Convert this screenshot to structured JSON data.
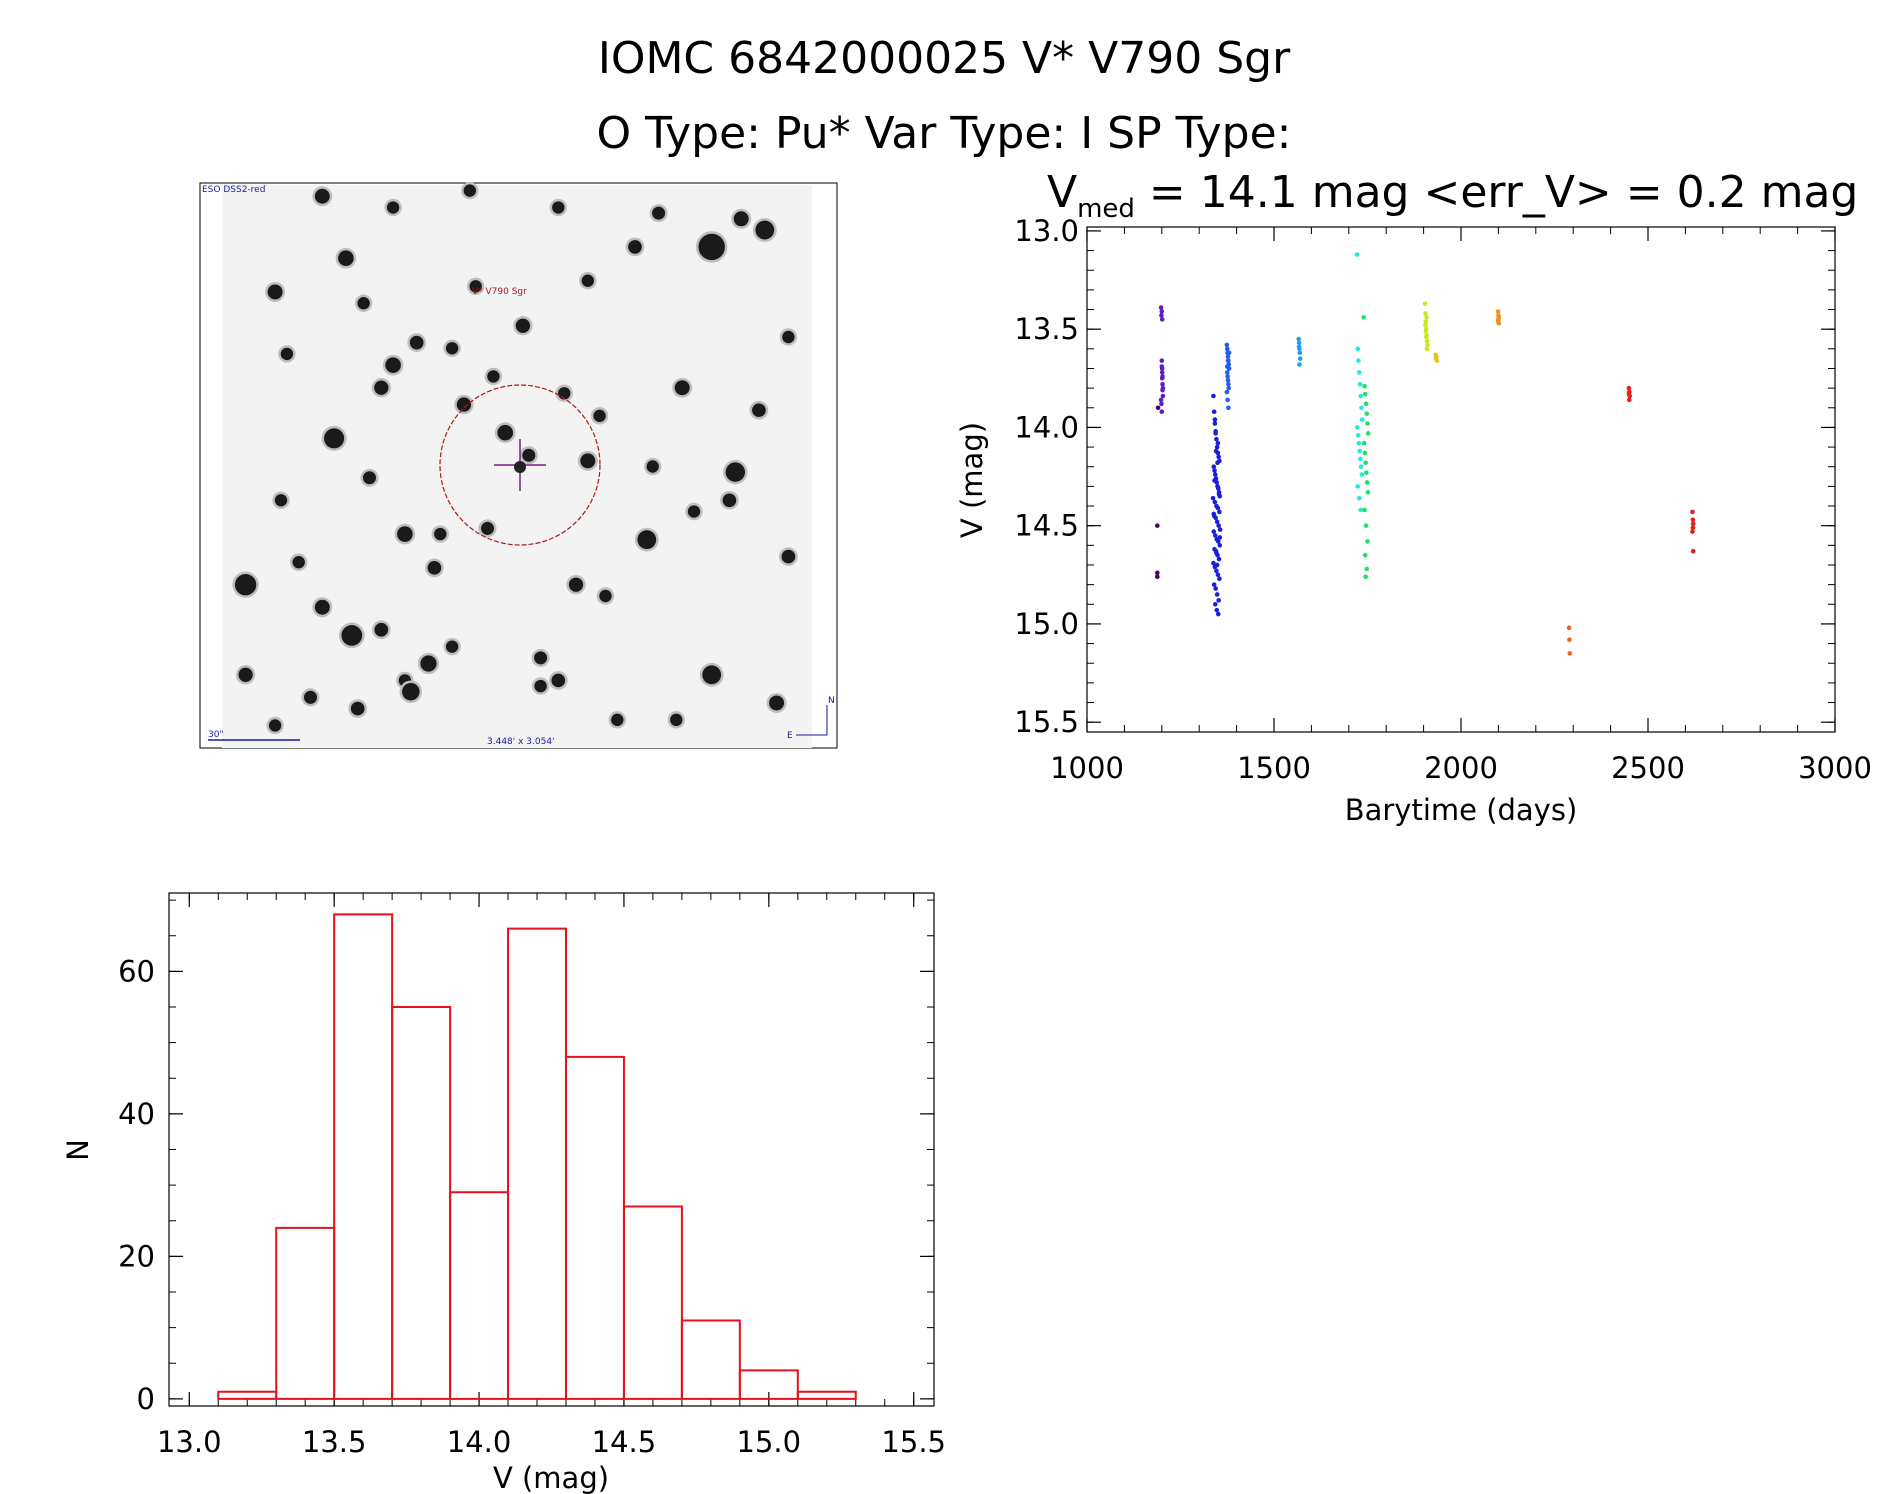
{
  "header": {
    "line1": "IOMC 6842000025    V* V790 Sgr",
    "line2": "O Type: Pu*  Var Type: I  SP Type:"
  },
  "finder": {
    "survey_label": "ESO DSS2-red",
    "object_label": "V* V790 Sgr",
    "scale_label": "30\"",
    "fov_label": "3.448' x 3.054'",
    "north_label": "N",
    "east_label": "E",
    "stars": [
      [
        0.17,
        0.02,
        1.4
      ],
      [
        0.29,
        0.04,
        1.0
      ],
      [
        0.42,
        0.01,
        1.0
      ],
      [
        0.57,
        0.04,
        1.0
      ],
      [
        0.74,
        0.05,
        1.1
      ],
      [
        0.83,
        0.11,
        3.2
      ],
      [
        0.92,
        0.08,
        2.0
      ],
      [
        0.88,
        0.06,
        1.4
      ],
      [
        0.7,
        0.11,
        1.2
      ],
      [
        0.21,
        0.13,
        1.5
      ],
      [
        0.09,
        0.19,
        1.4
      ],
      [
        0.24,
        0.21,
        1.0
      ],
      [
        0.51,
        0.25,
        1.3
      ],
      [
        0.29,
        0.32,
        1.5
      ],
      [
        0.33,
        0.28,
        1.2
      ],
      [
        0.39,
        0.29,
        1.0
      ],
      [
        0.27,
        0.36,
        1.3
      ],
      [
        0.78,
        0.36,
        1.4
      ],
      [
        0.64,
        0.41,
        1.0
      ],
      [
        0.91,
        0.4,
        1.2
      ],
      [
        0.19,
        0.45,
        2.2
      ],
      [
        0.41,
        0.39,
        1.3
      ],
      [
        0.48,
        0.44,
        1.5
      ],
      [
        0.52,
        0.48,
        1.1
      ],
      [
        0.62,
        0.49,
        1.4
      ],
      [
        0.73,
        0.5,
        1.0
      ],
      [
        0.87,
        0.51,
        2.1
      ],
      [
        0.1,
        0.56,
        1.0
      ],
      [
        0.25,
        0.52,
        1.1
      ],
      [
        0.86,
        0.56,
        1.2
      ],
      [
        0.31,
        0.62,
        1.5
      ],
      [
        0.37,
        0.62,
        1.0
      ],
      [
        0.45,
        0.61,
        1.1
      ],
      [
        0.72,
        0.63,
        2.0
      ],
      [
        0.96,
        0.66,
        1.2
      ],
      [
        0.13,
        0.67,
        1.0
      ],
      [
        0.04,
        0.71,
        2.4
      ],
      [
        0.36,
        0.68,
        1.2
      ],
      [
        0.6,
        0.71,
        1.3
      ],
      [
        0.65,
        0.73,
        1.0
      ],
      [
        0.17,
        0.75,
        1.4
      ],
      [
        0.22,
        0.8,
        2.3
      ],
      [
        0.27,
        0.79,
        1.2
      ],
      [
        0.39,
        0.82,
        1.0
      ],
      [
        0.54,
        0.84,
        1.1
      ],
      [
        0.31,
        0.88,
        1.0
      ],
      [
        0.35,
        0.85,
        1.6
      ],
      [
        0.32,
        0.9,
        1.8
      ],
      [
        0.57,
        0.88,
        1.2
      ],
      [
        0.54,
        0.89,
        1.0
      ],
      [
        0.04,
        0.87,
        1.3
      ],
      [
        0.15,
        0.91,
        1.1
      ],
      [
        0.09,
        0.96,
        1.0
      ],
      [
        0.23,
        0.93,
        1.2
      ],
      [
        0.83,
        0.87,
        2.0
      ],
      [
        0.77,
        0.95,
        1.0
      ],
      [
        0.94,
        0.92,
        1.4
      ],
      [
        0.67,
        0.95,
        1.0
      ],
      [
        0.58,
        0.37,
        1.0
      ],
      [
        0.46,
        0.34,
        1.0
      ],
      [
        0.8,
        0.58,
        1.0
      ],
      [
        0.96,
        0.27,
        1.0
      ],
      [
        0.11,
        0.3,
        1.0
      ],
      [
        0.62,
        0.17,
        1.0
      ],
      [
        0.43,
        0.18,
        1.0
      ]
    ]
  },
  "chart_data": [
    {
      "type": "scatter",
      "title": "V_med = 14.1 mag <err_V> = 0.2 mag",
      "title_parts": {
        "lead": "V",
        "sub": "med",
        "rest": " = 14.1 mag <err_V> = 0.2 mag"
      },
      "xlabel": "Barytime (days)",
      "ylabel": "V (mag)",
      "xlim": [
        1000,
        3000
      ],
      "ylim": [
        15.55,
        12.98
      ],
      "yreversed": true,
      "xticks": [
        1000,
        1500,
        2000,
        2500,
        3000
      ],
      "xtick_labels": [
        "1000",
        "1500",
        "2000",
        "2500",
        "3000"
      ],
      "yticks": [
        13.0,
        13.5,
        14.0,
        14.5,
        15.0,
        15.5
      ],
      "ytick_labels": [
        "13.0",
        "13.5",
        "14.0",
        "14.5",
        "15.0",
        "15.5"
      ],
      "xminor_step": 100,
      "yminor_step": 0.1,
      "groups": [
        {
          "name": "t1188",
          "color": "#4b0066",
          "x": [
            1188,
            1188,
            1188,
            1190
          ],
          "y": [
            14.5,
            14.74,
            14.76,
            13.9
          ]
        },
        {
          "name": "t1200",
          "color": "#5a1ec8",
          "x": [
            1198,
            1199,
            1200,
            1200,
            1201,
            1201,
            1202,
            1202,
            1203,
            1198,
            1199,
            1200,
            1201,
            1202,
            1203,
            1200,
            1201
          ],
          "y": [
            13.39,
            13.43,
            13.66,
            13.69,
            13.72,
            13.75,
            13.78,
            13.81,
            13.84,
            13.86,
            13.88,
            13.92,
            13.7,
            13.74,
            13.8,
            13.41,
            13.45
          ]
        },
        {
          "name": "t1350",
          "color": "#1b1ee0",
          "x": [
            1338,
            1340,
            1342,
            1344,
            1346,
            1348,
            1350,
            1352,
            1354,
            1339,
            1341,
            1343,
            1345,
            1347,
            1349,
            1351,
            1353,
            1355,
            1337,
            1342,
            1346,
            1350,
            1354,
            1340,
            1344,
            1348,
            1352,
            1356,
            1339,
            1343,
            1347,
            1351,
            1355,
            1341,
            1345,
            1349,
            1353,
            1338,
            1342,
            1346,
            1350,
            1354,
            1340,
            1344,
            1348,
            1352,
            1343,
            1347,
            1351,
            1345,
            1349,
            1341,
            1353,
            1339,
            1355,
            1346,
            1348,
            1350,
            1344,
            1342
          ],
          "y": [
            13.84,
            13.92,
            13.98,
            14.03,
            14.06,
            14.1,
            14.13,
            14.15,
            14.17,
            14.2,
            14.22,
            14.24,
            14.26,
            14.28,
            14.3,
            14.31,
            14.33,
            14.35,
            14.36,
            14.38,
            14.4,
            14.41,
            14.43,
            14.45,
            14.46,
            14.48,
            14.5,
            14.52,
            14.53,
            14.55,
            14.57,
            14.58,
            14.6,
            14.62,
            14.63,
            14.65,
            14.67,
            14.69,
            14.71,
            14.73,
            14.75,
            14.77,
            14.8,
            14.82,
            14.85,
            14.88,
            14.9,
            14.93,
            14.95,
            14.12,
            14.18,
            14.27,
            14.34,
            14.44,
            14.56,
            14.64,
            14.7,
            14.08,
            14.02,
            13.96
          ]
        },
        {
          "name": "t1380",
          "color": "#1f5ef0",
          "x": [
            1374,
            1375,
            1376,
            1377,
            1378,
            1379,
            1380,
            1375,
            1376,
            1377,
            1378,
            1379,
            1374,
            1376,
            1378,
            1380,
            1377,
            1375
          ],
          "y": [
            13.58,
            13.6,
            13.62,
            13.64,
            13.66,
            13.68,
            13.7,
            13.72,
            13.74,
            13.76,
            13.78,
            13.8,
            13.82,
            13.86,
            13.9,
            13.62,
            13.66,
            13.69
          ]
        },
        {
          "name": "t1570",
          "color": "#1fa0ee",
          "x": [
            1566,
            1567,
            1568,
            1569,
            1570,
            1568,
            1567
          ],
          "y": [
            13.55,
            13.57,
            13.6,
            13.62,
            13.65,
            13.68,
            13.59
          ]
        },
        {
          "name": "t1720",
          "color": "#22e8e0",
          "x": [
            1722,
            1724,
            1726,
            1728,
            1730,
            1732,
            1734,
            1736,
            1723,
            1725,
            1727,
            1729,
            1731,
            1733,
            1735,
            1724,
            1728,
            1732
          ],
          "y": [
            13.12,
            13.6,
            13.66,
            13.72,
            13.78,
            13.84,
            13.9,
            13.96,
            14.0,
            14.04,
            14.08,
            14.12,
            14.16,
            14.2,
            14.24,
            14.3,
            14.36,
            14.42
          ]
        },
        {
          "name": "t1750",
          "color": "#22e060",
          "x": [
            1740,
            1742,
            1744,
            1746,
            1748,
            1750,
            1752,
            1741,
            1743,
            1745,
            1747,
            1749,
            1751,
            1742,
            1746,
            1750,
            1744,
            1748,
            1745
          ],
          "y": [
            13.44,
            13.79,
            13.83,
            13.88,
            13.93,
            13.98,
            14.03,
            14.08,
            14.13,
            14.18,
            14.23,
            14.28,
            14.33,
            14.42,
            14.5,
            14.58,
            14.65,
            14.72,
            14.76
          ]
        },
        {
          "name": "t1910",
          "color": "#c8e820",
          "x": [
            1904,
            1905,
            1906,
            1907,
            1908,
            1909,
            1910,
            1905,
            1906,
            1907,
            1908,
            1909
          ],
          "y": [
            13.37,
            13.42,
            13.46,
            13.5,
            13.53,
            13.56,
            13.58,
            13.48,
            13.51,
            13.54,
            13.44,
            13.6
          ]
        },
        {
          "name": "t1935",
          "color": "#f0c020",
          "x": [
            1932,
            1934,
            1936,
            1933
          ],
          "y": [
            13.63,
            13.64,
            13.66,
            13.65
          ]
        },
        {
          "name": "t2100",
          "color": "#f0901c",
          "x": [
            2099,
            2100,
            2101,
            2100,
            2099,
            2101
          ],
          "y": [
            13.41,
            13.43,
            13.44,
            13.45,
            13.46,
            13.47
          ]
        },
        {
          "name": "t2290",
          "color": "#f0601c",
          "x": [
            2289,
            2290,
            2291
          ],
          "y": [
            15.02,
            15.08,
            15.15
          ]
        },
        {
          "name": "t2450",
          "color": "#e8201c",
          "x": [
            2449,
            2450,
            2451,
            2450,
            2449
          ],
          "y": [
            13.8,
            13.82,
            13.84,
            13.86,
            13.83
          ]
        },
        {
          "name": "t2620",
          "color": "#e0201c",
          "x": [
            2619,
            2620,
            2621,
            2620,
            2619,
            2621
          ],
          "y": [
            14.43,
            14.47,
            14.49,
            14.51,
            14.53,
            14.63
          ]
        }
      ]
    },
    {
      "type": "bar",
      "subtype": "histogram",
      "title": "",
      "xlabel": "V (mag)",
      "ylabel": "N",
      "xlim": [
        12.93,
        15.57
      ],
      "ylim": [
        -1,
        71
      ],
      "bar_color": "#e8101c",
      "bin_edges": [
        13.1,
        13.3,
        13.5,
        13.7,
        13.9,
        14.1,
        14.3,
        14.5,
        14.7,
        14.9,
        15.1,
        15.3
      ],
      "values": [
        1,
        24,
        68,
        55,
        29,
        66,
        48,
        27,
        11,
        4,
        1
      ],
      "xticks": [
        13.0,
        13.5,
        14.0,
        14.5,
        15.0,
        15.5
      ],
      "xtick_labels": [
        "13.0",
        "13.5",
        "14.0",
        "14.5",
        "15.0",
        "15.5"
      ],
      "yticks": [
        0,
        20,
        40,
        60
      ],
      "ytick_labels": [
        "0",
        "20",
        "40",
        "60"
      ],
      "xminor_step": 0.1,
      "yminor_step": 5
    }
  ]
}
